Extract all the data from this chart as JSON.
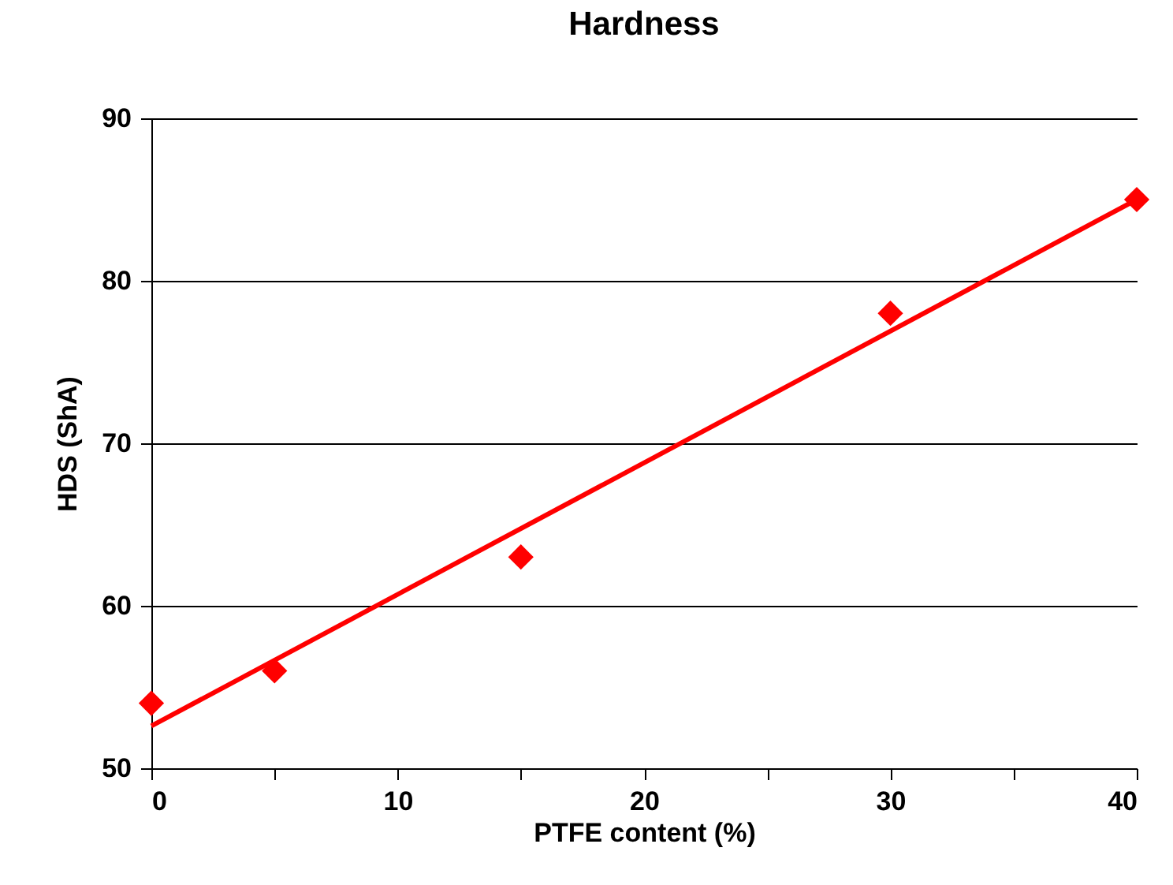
{
  "chart_data": {
    "type": "scatter",
    "title": "Hardness",
    "xlabel": "PTFE content (%)",
    "ylabel": "HDS (ShA)",
    "xlim": [
      0,
      40
    ],
    "xticks": [
      0,
      {
        "value": 5,
        "label": null
      },
      10,
      {
        "value": 15,
        "label": null
      },
      20,
      {
        "value": 25,
        "label": null
      },
      30,
      {
        "value": 35,
        "label": null
      },
      40
    ],
    "ylim": [
      50,
      90
    ],
    "yticks": [
      50,
      60,
      70,
      80,
      90
    ],
    "grid": "y",
    "series": [
      {
        "type": "line",
        "color": "#ff0000",
        "x": [
          0,
          40
        ],
        "values": [
          52.6,
          85
        ],
        "marker": "none",
        "line_style": "solid"
      },
      {
        "color": "#ff0000",
        "x": [
          0,
          5,
          15,
          30,
          40
        ],
        "values": [
          54,
          56,
          63,
          78,
          85
        ],
        "marker": "diamond"
      }
    ]
  }
}
